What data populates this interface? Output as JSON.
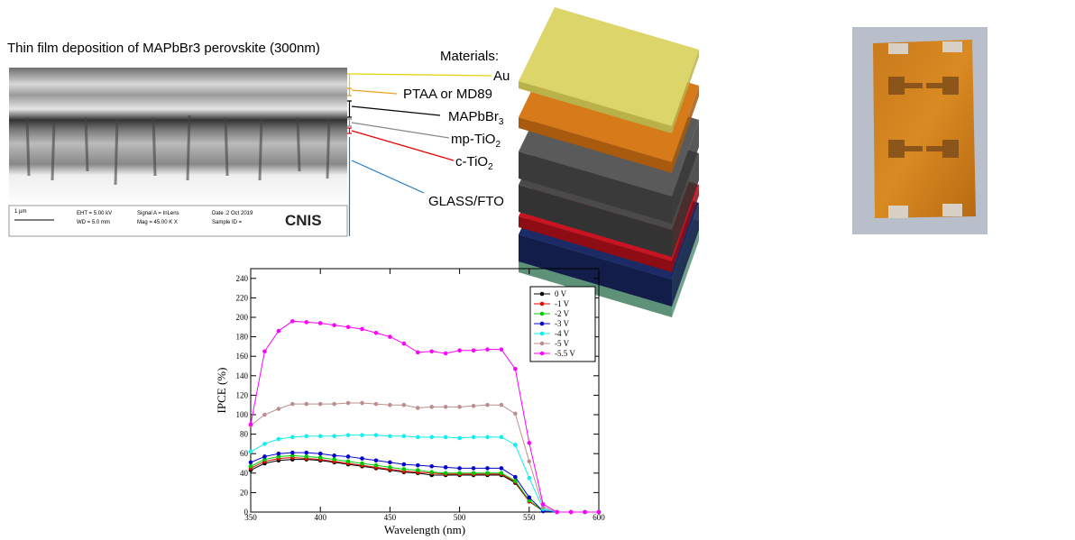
{
  "sem": {
    "title": "Thin film deposition of MAPbBr3 perovskite (300nm)",
    "scale": "1 µm",
    "eht": "EHT = 5.00 kV",
    "wd": "WD = 5.0 mm",
    "signal": "Signal A = InLens",
    "mag": "Mag = 45.00 K X",
    "date": "Date :2 Oct 2019",
    "sample": "Sample ID =",
    "logo": "CNIS"
  },
  "stack": {
    "heading": "Materials:",
    "au": "Au",
    "ptaa": "PTAA or MD89",
    "mapbbr": {
      "text": "MAPbBr",
      "sub": "3"
    },
    "mp": {
      "text": "mp-TiO",
      "sub": "2"
    },
    "c": {
      "text": "c-TiO",
      "sub": "2"
    },
    "glass": "GLASS/FTO"
  },
  "chart_data": {
    "type": "line",
    "x_label": "Wavelength (nm)",
    "y_label": "IPCE (%)",
    "x": [
      350,
      360,
      370,
      380,
      390,
      400,
      410,
      420,
      430,
      440,
      450,
      460,
      470,
      480,
      490,
      500,
      510,
      520,
      530,
      540,
      550,
      560,
      570,
      580,
      590,
      600
    ],
    "xlim": [
      350,
      600
    ],
    "ylim": [
      0,
      250
    ],
    "xticks": [
      350,
      400,
      450,
      500,
      550,
      600
    ],
    "yticks": [
      0,
      20,
      40,
      60,
      80,
      100,
      120,
      140,
      160,
      180,
      200,
      220,
      240
    ],
    "legend": "upper right",
    "series": [
      {
        "name": "0 V",
        "color": "#000000",
        "values": [
          43,
          50,
          53,
          54,
          54,
          53,
          51,
          49,
          47,
          45,
          43,
          41,
          40,
          38,
          38,
          38,
          38,
          38,
          38,
          30,
          11,
          1,
          0,
          0,
          0,
          0
        ]
      },
      {
        "name": "-1 V",
        "color": "#ee0000",
        "values": [
          45,
          52,
          55,
          56,
          55,
          54,
          52,
          50,
          48,
          46,
          44,
          42,
          41,
          40,
          39,
          39,
          39,
          39,
          39,
          31,
          11,
          1,
          0,
          0,
          0,
          0
        ]
      },
      {
        "name": "-2 V",
        "color": "#00cc00",
        "values": [
          47,
          54,
          57,
          58,
          57,
          56,
          54,
          52,
          50,
          48,
          46,
          44,
          43,
          41,
          40,
          40,
          40,
          40,
          40,
          32,
          12,
          1,
          0,
          0,
          0,
          0
        ]
      },
      {
        "name": "-3 V",
        "color": "#0000cc",
        "values": [
          51,
          57,
          60,
          61,
          61,
          60,
          58,
          57,
          55,
          53,
          51,
          49,
          48,
          47,
          46,
          45,
          45,
          45,
          45,
          36,
          15,
          1,
          0,
          0,
          0,
          0
        ]
      },
      {
        "name": "-4 V",
        "color": "#11eeee",
        "values": [
          62,
          70,
          75,
          77,
          78,
          78,
          78,
          79,
          79,
          79,
          78,
          78,
          77,
          77,
          77,
          76,
          77,
          77,
          77,
          69,
          35,
          3,
          0,
          0,
          0,
          0
        ]
      },
      {
        "name": "-5 V",
        "color": "#bc8f8f",
        "values": [
          89,
          100,
          106,
          111,
          111,
          111,
          111,
          112,
          112,
          111,
          110,
          110,
          107,
          108,
          108,
          108,
          109,
          110,
          110,
          101,
          52,
          5,
          0,
          0,
          0,
          0
        ]
      },
      {
        "name": "-5.5 V",
        "color": "#ff00ff",
        "values": [
          90,
          165,
          186,
          196,
          195,
          194,
          192,
          190,
          188,
          184,
          180,
          173,
          164,
          165,
          163,
          166,
          166,
          167,
          167,
          147,
          71,
          8,
          0,
          0,
          0,
          0
        ]
      }
    ]
  }
}
